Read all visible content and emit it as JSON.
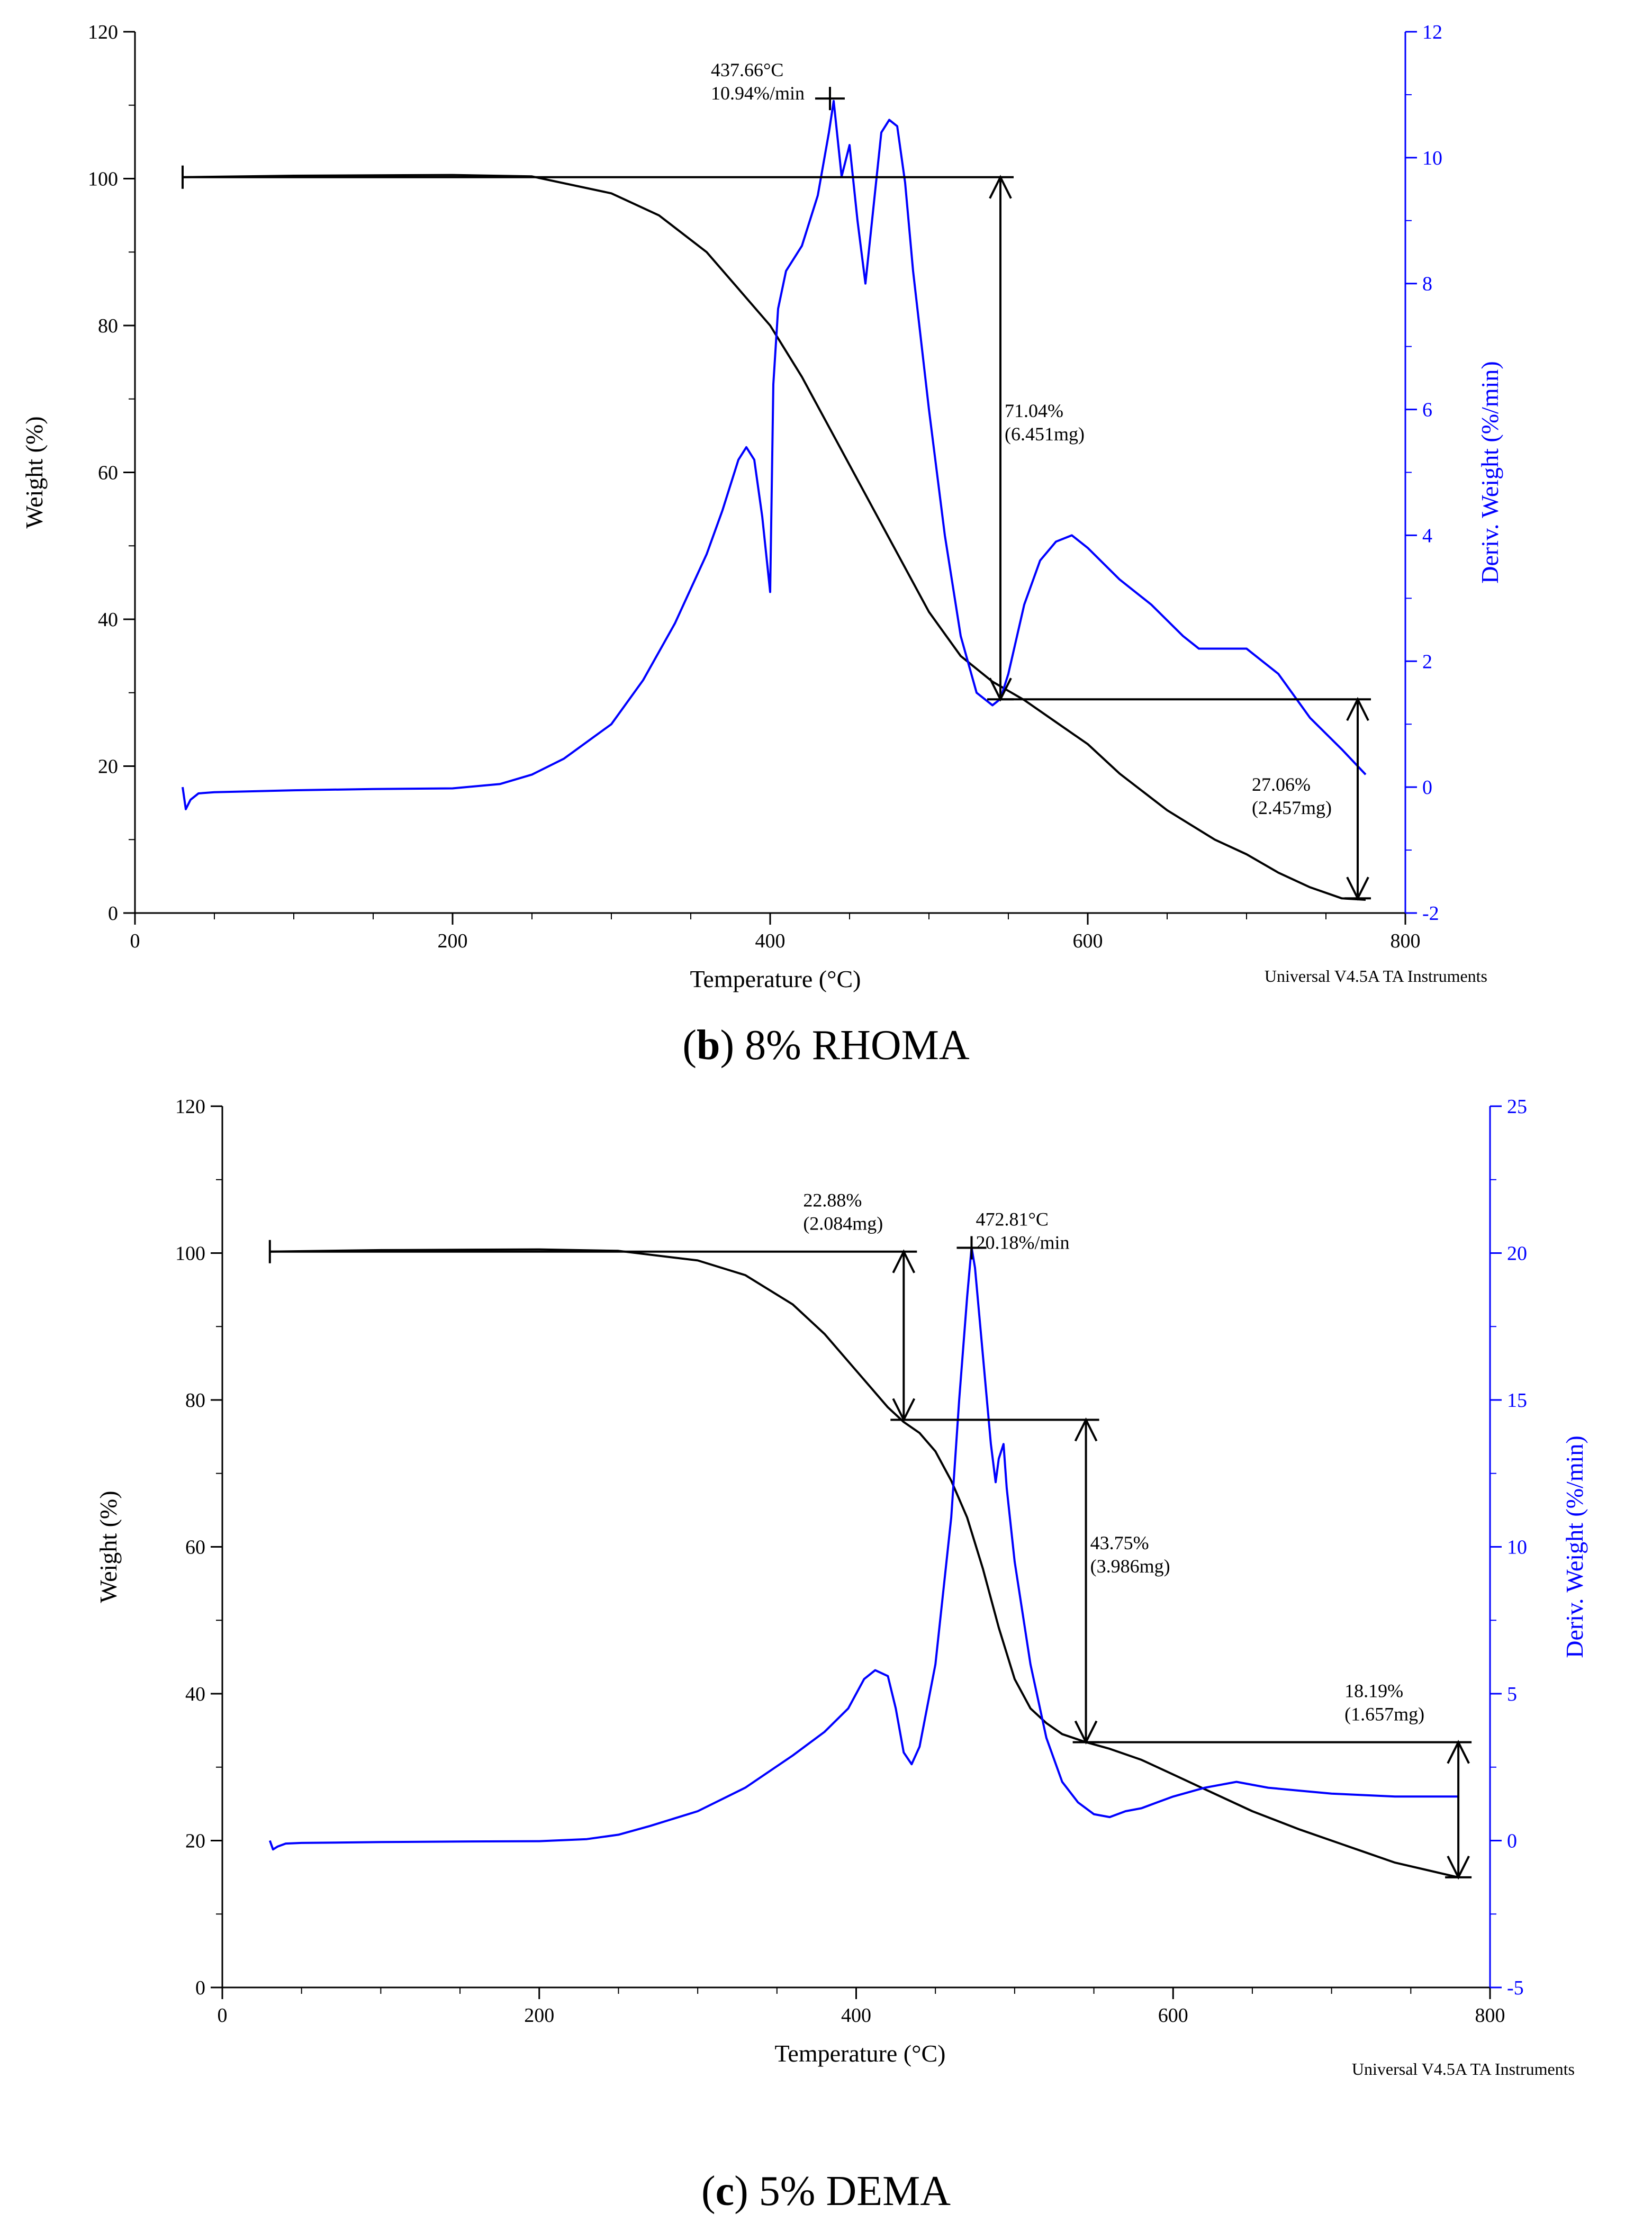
{
  "figure": {
    "panels": [
      {
        "caption_letter": "b",
        "caption_rest": ") 8% RHOMA"
      },
      {
        "caption_letter": "c",
        "caption_rest": ") 5% DEMA"
      }
    ],
    "caption_open_paren": "("
  },
  "chart_data": [
    {
      "type": "line",
      "panel": "b",
      "title": "8% RHOMA",
      "xlabel": "Temperature (°C)",
      "ylabel": "Weight (%)",
      "y2label": "Deriv. Weight (%/min)",
      "xlim": [
        0,
        800
      ],
      "ylim": [
        0,
        120
      ],
      "y2lim": [
        -2,
        12
      ],
      "x_ticks": [
        0,
        200,
        400,
        600,
        800
      ],
      "y_ticks": [
        0,
        20,
        40,
        60,
        80,
        100,
        120
      ],
      "y2_ticks": [
        -2,
        0,
        2,
        4,
        6,
        8,
        10,
        12
      ],
      "footer": "Universal V4.5A TA Instruments",
      "series": [
        {
          "name": "Weight",
          "axis": "left",
          "color": "#000000",
          "x": [
            30,
            100,
            200,
            250,
            300,
            330,
            360,
            380,
            400,
            420,
            440,
            460,
            480,
            500,
            520,
            540,
            560,
            580,
            600,
            620,
            650,
            680,
            700,
            720,
            740,
            760,
            775
          ],
          "y": [
            100.2,
            100.4,
            100.5,
            100.3,
            98.0,
            95.0,
            90.0,
            85.0,
            80.0,
            73.0,
            65.0,
            57.0,
            49.0,
            41.0,
            35.0,
            31.5,
            29.0,
            26.0,
            23.0,
            19.0,
            14.0,
            10.0,
            8.0,
            5.5,
            3.5,
            2.0,
            1.8
          ]
        },
        {
          "name": "Deriv. Weight",
          "axis": "right",
          "color": "#0000ff",
          "x": [
            30,
            32,
            35,
            40,
            50,
            100,
            150,
            200,
            230,
            250,
            270,
            300,
            320,
            340,
            360,
            370,
            380,
            385,
            390,
            395,
            400,
            402,
            405,
            410,
            420,
            430,
            437,
            440,
            445,
            450,
            455,
            460,
            465,
            470,
            475,
            480,
            485,
            490,
            500,
            510,
            520,
            530,
            540,
            545,
            550,
            560,
            570,
            580,
            590,
            600,
            620,
            640,
            660,
            670,
            680,
            700,
            710,
            720,
            740,
            760,
            775
          ],
          "y": [
            0.0,
            -0.35,
            -0.2,
            -0.1,
            -0.08,
            -0.05,
            -0.03,
            -0.02,
            0.05,
            0.2,
            0.45,
            1.0,
            1.7,
            2.6,
            3.7,
            4.4,
            5.2,
            5.4,
            5.2,
            4.3,
            3.1,
            6.4,
            7.6,
            8.2,
            8.6,
            9.4,
            10.4,
            10.9,
            9.7,
            10.2,
            9.0,
            8.0,
            9.2,
            10.4,
            10.6,
            10.5,
            9.6,
            8.2,
            6.0,
            4.0,
            2.4,
            1.5,
            1.3,
            1.4,
            1.8,
            2.9,
            3.6,
            3.9,
            4.0,
            3.8,
            3.3,
            2.9,
            2.4,
            2.2,
            2.2,
            2.2,
            2.0,
            1.8,
            1.1,
            0.6,
            0.2
          ]
        }
      ],
      "annotations": [
        {
          "id": "peak",
          "line1": "437.66°C",
          "line2": "10.94%/min",
          "x": 437.66,
          "y2": 10.94
        },
        {
          "id": "step1",
          "line1": "71.04%",
          "line2": "(6.451mg)",
          "x": 545,
          "from_weight": 100.2,
          "to_weight": 29.1
        },
        {
          "id": "step2",
          "line1": "27.06%",
          "line2": "(2.457mg)",
          "x": 770,
          "from_weight": 29.1,
          "to_weight": 2.0
        }
      ]
    },
    {
      "type": "line",
      "panel": "c",
      "title": "5% DEMA",
      "xlabel": "Temperature (°C)",
      "ylabel": "Weight (%)",
      "y2label": "Deriv. Weight (%/min)",
      "xlim": [
        0,
        800
      ],
      "ylim": [
        0,
        120
      ],
      "y2lim": [
        -5,
        25
      ],
      "x_ticks": [
        0,
        200,
        400,
        600,
        800
      ],
      "y_ticks": [
        0,
        20,
        40,
        60,
        80,
        100,
        120
      ],
      "y2_ticks": [
        -5,
        0,
        5,
        10,
        15,
        20,
        25
      ],
      "footer": "Universal V4.5A TA Instruments",
      "series": [
        {
          "name": "Weight",
          "axis": "left",
          "color": "#000000",
          "x": [
            30,
            100,
            200,
            250,
            300,
            330,
            360,
            380,
            400,
            420,
            430,
            440,
            450,
            460,
            470,
            480,
            490,
            500,
            510,
            520,
            530,
            545,
            560,
            580,
            600,
            620,
            650,
            680,
            700,
            720,
            740,
            760,
            780
          ],
          "y": [
            100.2,
            100.4,
            100.5,
            100.3,
            99.0,
            97.0,
            93.0,
            89.0,
            84.0,
            79.0,
            77.0,
            75.5,
            73.0,
            69.0,
            64.0,
            57.0,
            49.0,
            42.0,
            38.0,
            36.0,
            34.5,
            33.4,
            32.5,
            31.0,
            29.0,
            27.0,
            24.0,
            21.5,
            20.0,
            18.5,
            17.0,
            16.0,
            15.0
          ]
        },
        {
          "name": "Deriv. Weight",
          "axis": "right",
          "color": "#0000ff",
          "x": [
            30,
            32,
            35,
            40,
            50,
            100,
            150,
            200,
            230,
            250,
            270,
            300,
            330,
            360,
            380,
            395,
            405,
            412,
            420,
            425,
            430,
            435,
            440,
            450,
            460,
            465,
            470,
            472.81,
            475,
            480,
            485,
            488,
            490,
            493,
            495,
            500,
            510,
            520,
            530,
            540,
            550,
            560,
            570,
            580,
            590,
            600,
            620,
            640,
            660,
            680,
            700,
            740,
            780
          ],
          "y": [
            0.0,
            -0.3,
            -0.2,
            -0.1,
            -0.08,
            -0.05,
            -0.03,
            -0.02,
            0.05,
            0.2,
            0.5,
            1.0,
            1.8,
            2.9,
            3.7,
            4.5,
            5.5,
            5.8,
            5.6,
            4.5,
            3.0,
            2.6,
            3.2,
            6.0,
            11.0,
            15.0,
            18.5,
            20.2,
            19.5,
            16.5,
            13.5,
            12.2,
            13.0,
            13.5,
            12.0,
            9.5,
            6.0,
            3.5,
            2.0,
            1.3,
            0.9,
            0.8,
            1.0,
            1.1,
            1.3,
            1.5,
            1.8,
            2.0,
            1.8,
            1.7,
            1.6,
            1.5,
            1.5
          ]
        }
      ],
      "annotations": [
        {
          "id": "peak",
          "line1": "472.81°C",
          "line2": "20.18%/min",
          "x": 472.81,
          "y2": 20.18
        },
        {
          "id": "step1",
          "line1": "22.88%",
          "line2": "(2.084mg)",
          "x": 430,
          "from_weight": 100.2,
          "to_weight": 77.3
        },
        {
          "id": "step2",
          "line1": "43.75%",
          "line2": "(3.986mg)",
          "x": 545,
          "from_weight": 77.3,
          "to_weight": 33.4
        },
        {
          "id": "step3",
          "line1": "18.19%",
          "line2": "(1.657mg)",
          "x": 780,
          "from_weight": 33.4,
          "to_weight": 15.0
        }
      ]
    }
  ]
}
